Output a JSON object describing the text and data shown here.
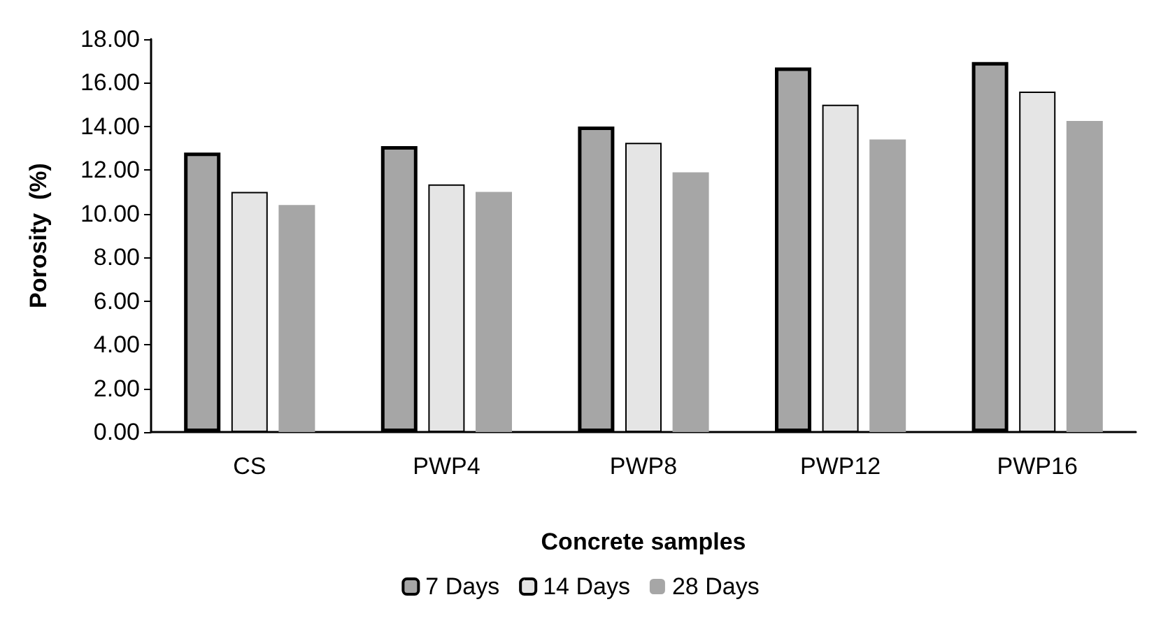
{
  "chart_data": {
    "type": "bar",
    "xlabel": "Concrete samples",
    "ylabel": "Porosity  (%)",
    "categories": [
      "CS",
      "PWP4",
      "PWP8",
      "PWP12",
      "PWP16"
    ],
    "series": [
      {
        "name": "7 Days",
        "color": "#a6a6a6",
        "values": [
          12.8,
          13.1,
          14.0,
          16.7,
          16.95
        ]
      },
      {
        "name": "14 Days",
        "color": "#e5e5e5",
        "values": [
          11.0,
          11.35,
          13.25,
          15.0,
          15.6
        ]
      },
      {
        "name": "28 Days",
        "color": "#a6a6a6",
        "values": [
          10.4,
          11.0,
          11.9,
          13.4,
          14.25
        ]
      }
    ],
    "ylim": [
      0,
      18
    ],
    "yticks": [
      {
        "value": 0,
        "label": "0.00"
      },
      {
        "value": 2,
        "label": "2.00"
      },
      {
        "value": 4,
        "label": "4.00"
      },
      {
        "value": 6,
        "label": "6.00"
      },
      {
        "value": 8,
        "label": "8.00"
      },
      {
        "value": 10,
        "label": "10.00"
      },
      {
        "value": 12,
        "label": "12.00"
      },
      {
        "value": 14,
        "label": "14.00"
      },
      {
        "value": 16,
        "label": "16.00"
      },
      {
        "value": 18,
        "label": "18.00"
      }
    ],
    "grid": false,
    "legend": "bottom"
  }
}
